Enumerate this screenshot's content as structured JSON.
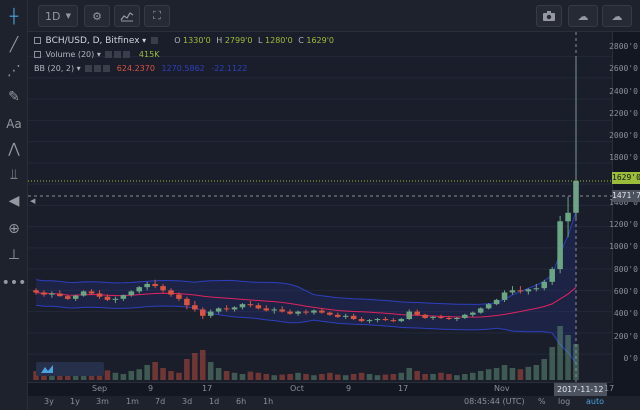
{
  "toolbar": {
    "interval": "1D",
    "interval_arrow": "▼"
  },
  "legend": {
    "symbol": "BCH/USD, D, Bitfinex",
    "open_label": "O",
    "open": "1330'0",
    "high_label": "H",
    "high": "2799'0",
    "low_label": "L",
    "low": "1280'0",
    "close_label": "C",
    "close": "1629'0",
    "volume_label": "Volume (20)",
    "volume_value": "415K",
    "bb_label": "BB (20, 2)",
    "bb_basis": "624.2370",
    "bb_upper": "1270.5862",
    "bb_lower": "-22.1122"
  },
  "price_axis": {
    "labels": [
      "2800'0",
      "2600'0",
      "2400'0",
      "2200'0",
      "2000'0",
      "1800'0",
      "1400'0",
      "1200'0",
      "1000'0",
      "800'0",
      "600'0",
      "400'0",
      "200'0",
      "0'0"
    ],
    "last_price": "1629'0",
    "crosshair_price": "1471'7"
  },
  "time_axis": {
    "labels": [
      "Sep",
      "9",
      "17",
      "Oct",
      "9",
      "17",
      "Nov"
    ],
    "crosshair_date": "2017-11-12",
    "after": "17"
  },
  "bottom_bar": {
    "ranges": [
      "3y",
      "1y",
      "3m",
      "1m",
      "7d",
      "3d",
      "1d",
      "6h",
      "1h"
    ],
    "clock": "08:45:44 (UTC)",
    "pct": "%",
    "log": "log",
    "auto": "auto"
  },
  "colors": {
    "up": "#6ba583",
    "down": "#d75442",
    "bb_basis": "#e0245e",
    "bb_band": "#2d3fbf",
    "last_price": "#9bbd3a",
    "crosshair": "#8c8f99"
  },
  "chart_data": {
    "type": "candlestick",
    "symbol": "BCH/USD",
    "interval": "D",
    "exchange": "Bitfinex",
    "ylim": [
      -150,
      2900
    ],
    "candles": [
      [
        600,
        620,
        560,
        580
      ],
      [
        580,
        600,
        540,
        560
      ],
      [
        560,
        590,
        530,
        570
      ],
      [
        570,
        600,
        540,
        545
      ],
      [
        545,
        560,
        510,
        520
      ],
      [
        520,
        560,
        500,
        550
      ],
      [
        550,
        600,
        540,
        590
      ],
      [
        590,
        610,
        560,
        570
      ],
      [
        570,
        600,
        520,
        540
      ],
      [
        540,
        560,
        500,
        510
      ],
      [
        510,
        540,
        480,
        520
      ],
      [
        520,
        560,
        500,
        555
      ],
      [
        555,
        600,
        540,
        590
      ],
      [
        590,
        640,
        570,
        630
      ],
      [
        630,
        680,
        600,
        660
      ],
      [
        660,
        700,
        620,
        640
      ],
      [
        640,
        660,
        580,
        600
      ],
      [
        600,
        620,
        540,
        560
      ],
      [
        560,
        580,
        500,
        520
      ],
      [
        520,
        540,
        420,
        460
      ],
      [
        460,
        500,
        400,
        420
      ],
      [
        420,
        440,
        330,
        360
      ],
      [
        360,
        420,
        340,
        400
      ],
      [
        400,
        440,
        380,
        430
      ],
      [
        430,
        460,
        400,
        420
      ],
      [
        420,
        450,
        400,
        440
      ],
      [
        440,
        480,
        420,
        470
      ],
      [
        470,
        500,
        440,
        460
      ],
      [
        460,
        480,
        420,
        430
      ],
      [
        430,
        460,
        400,
        410
      ],
      [
        410,
        440,
        380,
        420
      ],
      [
        420,
        450,
        390,
        400
      ],
      [
        400,
        420,
        370,
        380
      ],
      [
        380,
        410,
        360,
        400
      ],
      [
        400,
        420,
        370,
        390
      ],
      [
        390,
        420,
        370,
        410
      ],
      [
        410,
        430,
        380,
        390
      ],
      [
        390,
        400,
        360,
        370
      ],
      [
        370,
        390,
        340,
        350
      ],
      [
        350,
        380,
        330,
        360
      ],
      [
        360,
        380,
        320,
        330
      ],
      [
        330,
        350,
        300,
        310
      ],
      [
        310,
        330,
        290,
        320
      ],
      [
        320,
        340,
        300,
        330
      ],
      [
        330,
        350,
        310,
        320
      ],
      [
        320,
        340,
        300,
        310
      ],
      [
        310,
        340,
        300,
        330
      ],
      [
        330,
        420,
        320,
        400
      ],
      [
        400,
        420,
        360,
        370
      ],
      [
        370,
        380,
        330,
        340
      ],
      [
        340,
        360,
        320,
        350
      ],
      [
        350,
        370,
        330,
        340
      ],
      [
        340,
        360,
        320,
        330
      ],
      [
        330,
        350,
        310,
        340
      ],
      [
        340,
        380,
        330,
        370
      ],
      [
        370,
        400,
        350,
        390
      ],
      [
        390,
        440,
        380,
        430
      ],
      [
        430,
        480,
        420,
        470
      ],
      [
        470,
        520,
        460,
        510
      ],
      [
        510,
        600,
        490,
        580
      ],
      [
        580,
        640,
        560,
        600
      ],
      [
        600,
        640,
        570,
        590
      ],
      [
        590,
        620,
        560,
        610
      ],
      [
        610,
        660,
        590,
        620
      ],
      [
        620,
        700,
        600,
        680
      ],
      [
        680,
        820,
        650,
        800
      ],
      [
        800,
        1300,
        760,
        1250
      ],
      [
        1250,
        1480,
        1100,
        1330
      ],
      [
        1330,
        2799,
        1280,
        1629
      ]
    ],
    "volume_relative": [
      0.15,
      0.1,
      0.08,
      0.12,
      0.2,
      0.14,
      0.1,
      0.18,
      0.22,
      0.16,
      0.12,
      0.1,
      0.15,
      0.18,
      0.25,
      0.3,
      0.2,
      0.15,
      0.12,
      0.35,
      0.45,
      0.5,
      0.3,
      0.2,
      0.15,
      0.12,
      0.1,
      0.14,
      0.12,
      0.1,
      0.08,
      0.09,
      0.1,
      0.12,
      0.1,
      0.08,
      0.1,
      0.12,
      0.09,
      0.08,
      0.1,
      0.12,
      0.1,
      0.08,
      0.09,
      0.1,
      0.12,
      0.2,
      0.15,
      0.1,
      0.1,
      0.12,
      0.1,
      0.08,
      0.1,
      0.12,
      0.15,
      0.18,
      0.2,
      0.25,
      0.2,
      0.18,
      0.22,
      0.25,
      0.35,
      0.55,
      0.9,
      0.75,
      0.6
    ]
  }
}
